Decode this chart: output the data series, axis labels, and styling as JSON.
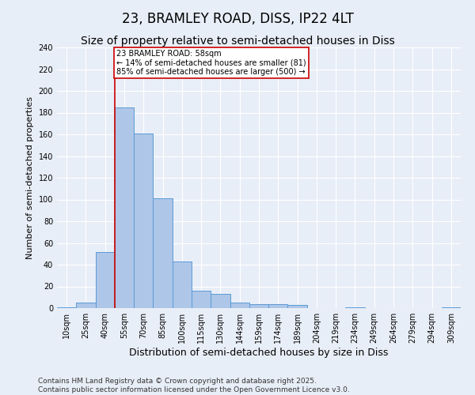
{
  "title": "23, BRAMLEY ROAD, DISS, IP22 4LT",
  "subtitle": "Size of property relative to semi-detached houses in Diss",
  "xlabel": "Distribution of semi-detached houses by size in Diss",
  "ylabel": "Number of semi-detached properties",
  "footer_line1": "Contains HM Land Registry data © Crown copyright and database right 2025.",
  "footer_line2": "Contains public sector information licensed under the Open Government Licence v3.0.",
  "categories": [
    "10sqm",
    "25sqm",
    "40sqm",
    "55sqm",
    "70sqm",
    "85sqm",
    "100sqm",
    "115sqm",
    "130sqm",
    "144sqm",
    "159sqm",
    "174sqm",
    "189sqm",
    "204sqm",
    "219sqm",
    "234sqm",
    "249sqm",
    "264sqm",
    "279sqm",
    "294sqm",
    "309sqm"
  ],
  "values": [
    1,
    5,
    52,
    185,
    161,
    101,
    43,
    16,
    13,
    5,
    4,
    4,
    3,
    0,
    0,
    1,
    0,
    0,
    0,
    0,
    1
  ],
  "bar_color": "#aec6e8",
  "bar_edge_color": "#5b9bd5",
  "background_color": "#e8eef7",
  "grid_color": "#ffffff",
  "red_line_color": "#cc0000",
  "red_line_index": 3,
  "annotation_text_line1": "23 BRAMLEY ROAD: 58sqm",
  "annotation_text_line2": "← 14% of semi-detached houses are smaller (81)",
  "annotation_text_line3": "85% of semi-detached houses are larger (500) →",
  "annotation_box_color": "#ffffff",
  "annotation_box_edge": "#cc0000",
  "ylim": [
    0,
    240
  ],
  "yticks": [
    0,
    20,
    40,
    60,
    80,
    100,
    120,
    140,
    160,
    180,
    200,
    220,
    240
  ],
  "title_fontsize": 12,
  "subtitle_fontsize": 10,
  "xlabel_fontsize": 9,
  "ylabel_fontsize": 8,
  "tick_fontsize": 7,
  "annotation_fontsize": 7,
  "footer_fontsize": 6.5
}
